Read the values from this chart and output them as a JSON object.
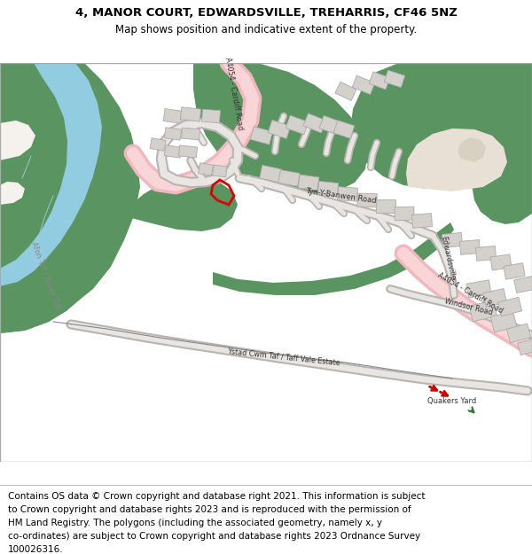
{
  "title_line1": "4, MANOR COURT, EDWARDSVILLE, TREHARRIS, CF46 5NZ",
  "title_line2": "Map shows position and indicative extent of the property.",
  "footer_lines": [
    "Contains OS data © Crown copyright and database right 2021. This information is subject",
    "to Crown copyright and database rights 2023 and is reproduced with the permission of",
    "HM Land Registry. The polygons (including the associated geometry, namely x, y",
    "co-ordinates) are subject to Crown copyright and database rights 2023 Ordnance Survey",
    "100026316."
  ],
  "title_fontsize": 9.5,
  "subtitle_fontsize": 8.5,
  "footer_fontsize": 7.5,
  "green_color": "#5a9460",
  "river_color": "#92cce0",
  "road_pink": "#f0b8be",
  "road_pink_light": "#fad5d8",
  "road_gray_edge": "#b8b4b0",
  "road_gray_fill": "#e8e5e2",
  "building_fill": "#d4d0cc",
  "building_edge": "#aaaaaa",
  "highlight_red": "#dd0000",
  "map_bg": "#f5f2ee",
  "beige_area": "#e8e0d4",
  "header_bg": "#ffffff",
  "footer_bg": "#ffffff",
  "text_color": "#555555",
  "label_color": "#333333"
}
